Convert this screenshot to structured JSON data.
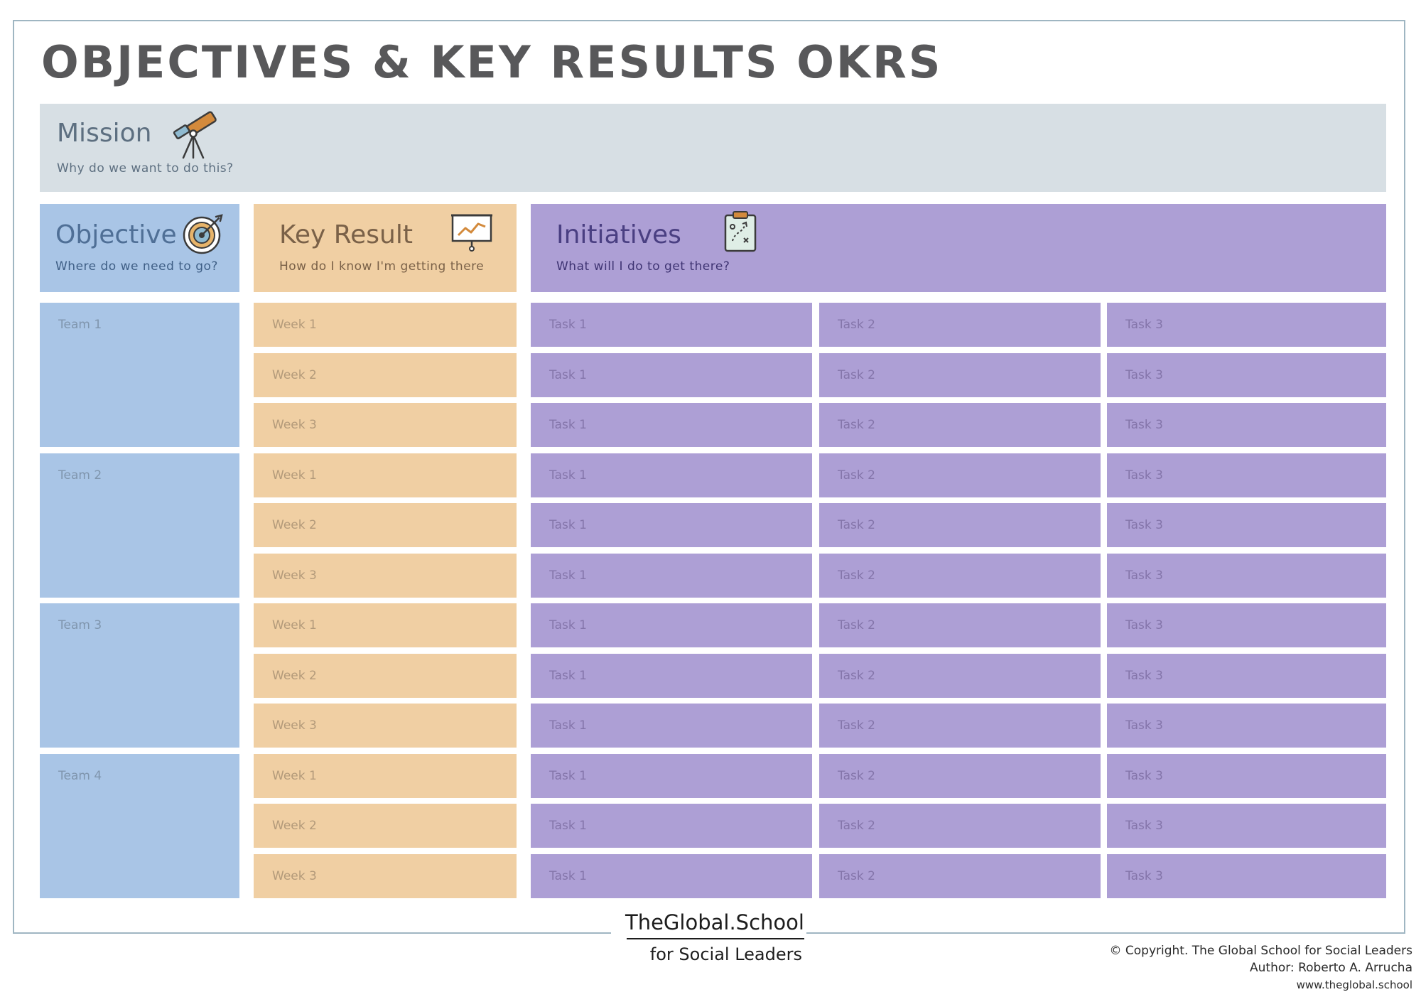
{
  "title": "OBJECTIVES & KEY RESULTS OKRS",
  "mission": {
    "title": "Mission",
    "subtitle": "Why do we want to do this?"
  },
  "headers": {
    "objective": {
      "title": "Objective",
      "subtitle": "Where do we need to go?"
    },
    "key_result": {
      "title": "Key Result",
      "subtitle": "How do I know I'm getting there"
    },
    "initiatives": {
      "title": "Initiatives",
      "subtitle": "What will I do to get there?"
    }
  },
  "teams": [
    {
      "label": "Team 1",
      "rows": [
        {
          "week": "Week 1",
          "tasks": [
            "Task 1",
            "Task 2",
            "Task 3"
          ]
        },
        {
          "week": "Week 2",
          "tasks": [
            "Task 1",
            "Task 2",
            "Task 3"
          ]
        },
        {
          "week": "Week 3",
          "tasks": [
            "Task 1",
            "Task 2",
            "Task 3"
          ]
        }
      ]
    },
    {
      "label": "Team 2",
      "rows": [
        {
          "week": "Week 1",
          "tasks": [
            "Task 1",
            "Task 2",
            "Task 3"
          ]
        },
        {
          "week": "Week 2",
          "tasks": [
            "Task 1",
            "Task 2",
            "Task 3"
          ]
        },
        {
          "week": "Week 3",
          "tasks": [
            "Task 1",
            "Task 2",
            "Task 3"
          ]
        }
      ]
    },
    {
      "label": "Team 3",
      "rows": [
        {
          "week": "Week 1",
          "tasks": [
            "Task 1",
            "Task 2",
            "Task 3"
          ]
        },
        {
          "week": "Week 2",
          "tasks": [
            "Task 1",
            "Task 2",
            "Task 3"
          ]
        },
        {
          "week": "Week 3",
          "tasks": [
            "Task 1",
            "Task 2",
            "Task 3"
          ]
        }
      ]
    },
    {
      "label": "Team 4",
      "rows": [
        {
          "week": "Week 1",
          "tasks": [
            "Task 1",
            "Task 2",
            "Task 3"
          ]
        },
        {
          "week": "Week 2",
          "tasks": [
            "Task 1",
            "Task 2",
            "Task 3"
          ]
        },
        {
          "week": "Week 3",
          "tasks": [
            "Task 1",
            "Task 2",
            "Task 3"
          ]
        }
      ]
    }
  ],
  "logo": {
    "main": "TheGlobal.School",
    "sub": "for Social Leaders"
  },
  "credits": {
    "copyright": "© Copyright. The Global School for Social Leaders",
    "author": "Author: Roberto A. Arrucha",
    "website": "www.theglobal.school"
  },
  "colors": {
    "objective": "#a9c5e6",
    "key_result": "#f0cfa3",
    "initiatives": "#ad9fd5",
    "mission": "#d7dfe4",
    "title": "#58585a"
  }
}
